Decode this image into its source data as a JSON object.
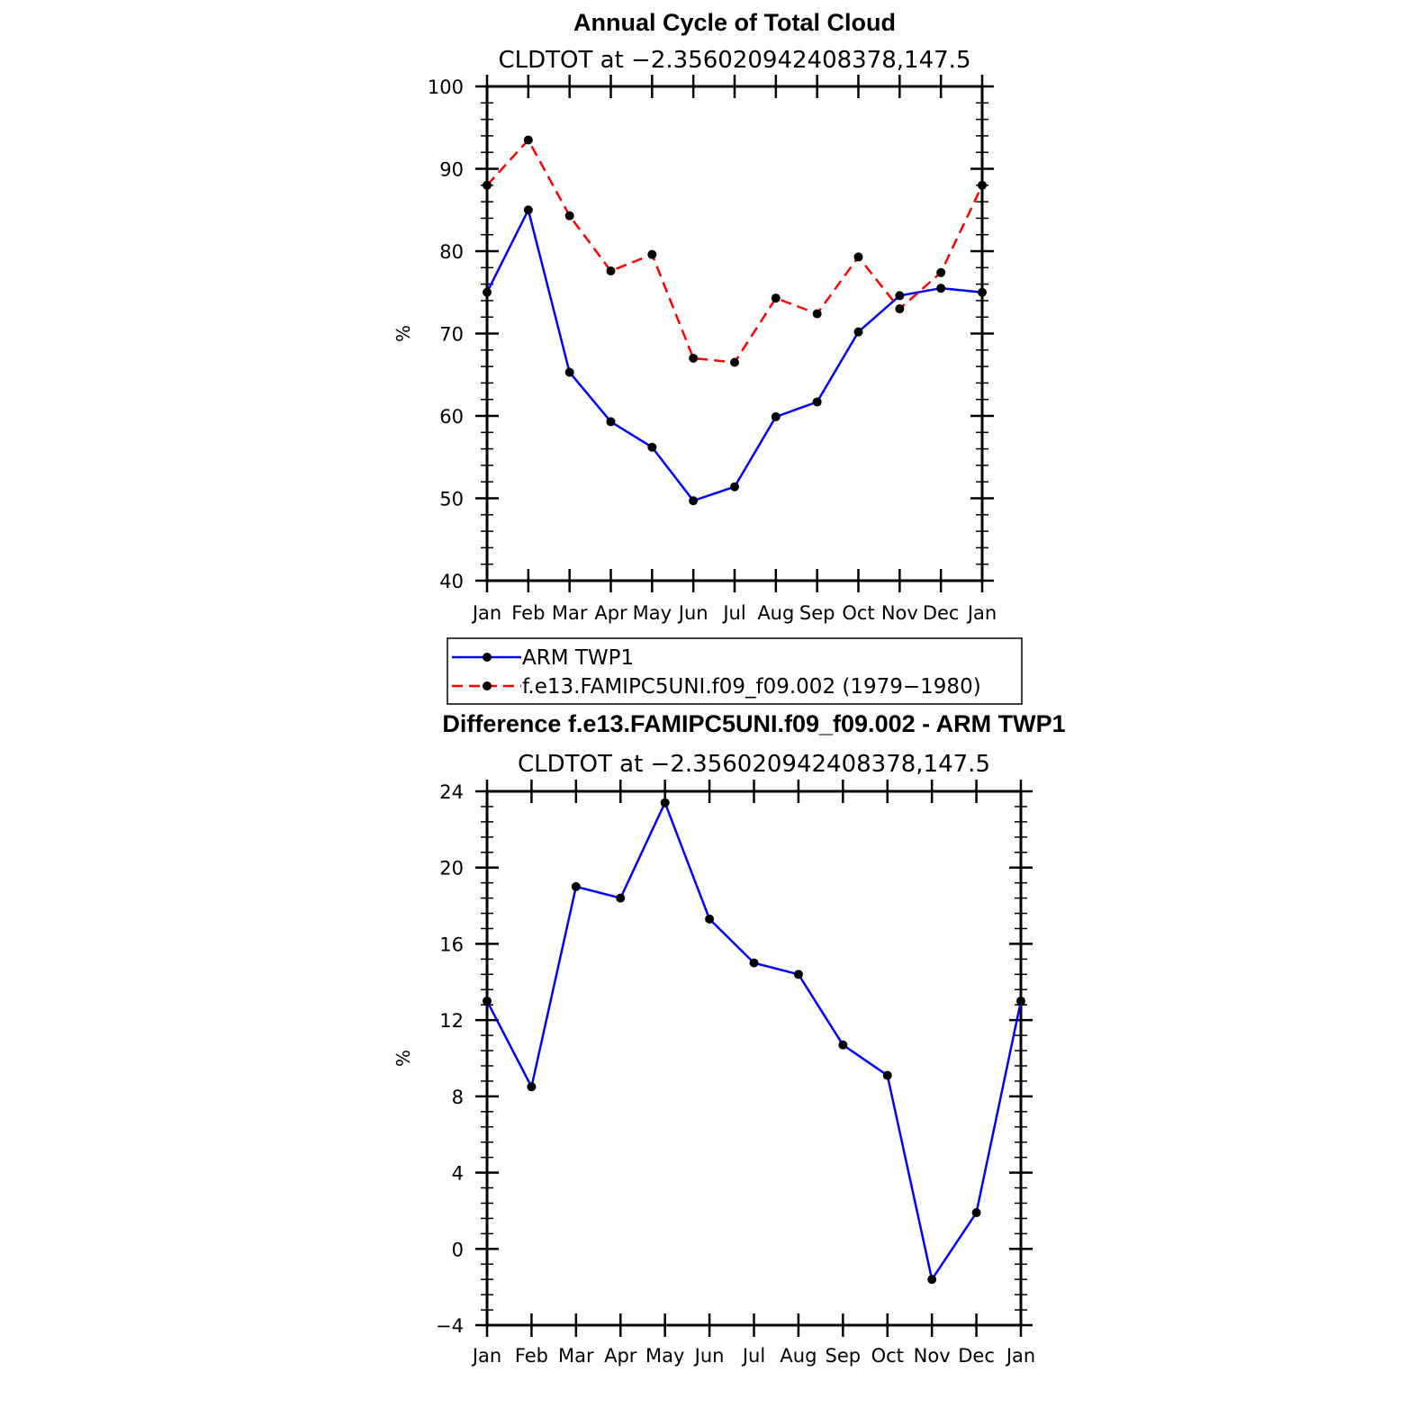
{
  "chart_data": [
    {
      "type": "line",
      "title": "Annual Cycle of Total Cloud",
      "subtitle": "CLDTOT at −2.356020942408378,147.5",
      "ylabel": "%",
      "xlabel": "",
      "categories": [
        "Jan",
        "Feb",
        "Mar",
        "Apr",
        "May",
        "Jun",
        "Jul",
        "Aug",
        "Sep",
        "Oct",
        "Nov",
        "Dec",
        "Jan"
      ],
      "ylim": [
        40,
        100
      ],
      "yticks": [
        40,
        50,
        60,
        70,
        80,
        90,
        100
      ],
      "ytick_labels": [
        "40",
        "50",
        "60",
        "70",
        "80",
        "90",
        "100"
      ],
      "grid": false,
      "legend": "below",
      "series": [
        {
          "name": "ARM TWP1",
          "color": "#0000ff",
          "dash": "solid",
          "values": [
            75.0,
            85.0,
            65.3,
            59.3,
            56.2,
            49.7,
            51.4,
            59.9,
            61.7,
            70.2,
            74.6,
            75.5,
            75.0
          ]
        },
        {
          "name": "f.e13.FAMIPC5UNI.f09_f09.002 (1979−1980)",
          "color": "#ff0000",
          "dash": "dashed",
          "values": [
            88.0,
            93.5,
            84.3,
            77.6,
            79.6,
            67.0,
            66.5,
            74.3,
            72.4,
            79.3,
            73.0,
            77.4,
            88.0
          ]
        }
      ]
    },
    {
      "type": "line",
      "title": "Difference f.e13.FAMIPC5UNI.f09_f09.002 - ARM TWP1",
      "subtitle": "CLDTOT at −2.356020942408378,147.5",
      "ylabel": "%",
      "xlabel": "",
      "categories": [
        "Jan",
        "Feb",
        "Mar",
        "Apr",
        "May",
        "Jun",
        "Jul",
        "Aug",
        "Sep",
        "Oct",
        "Nov",
        "Dec",
        "Jan"
      ],
      "ylim": [
        -4,
        24
      ],
      "yticks": [
        -4,
        0,
        4,
        8,
        12,
        16,
        20,
        24
      ],
      "ytick_labels": [
        "−4",
        "0",
        "4",
        "8",
        "12",
        "16",
        "20",
        "24"
      ],
      "grid": false,
      "series": [
        {
          "color": "#0000ff",
          "dash": "solid",
          "values": [
            13.0,
            8.5,
            19.0,
            18.4,
            23.4,
            17.3,
            15.0,
            14.4,
            10.7,
            9.1,
            -1.6,
            1.9,
            13.0
          ]
        }
      ]
    }
  ]
}
